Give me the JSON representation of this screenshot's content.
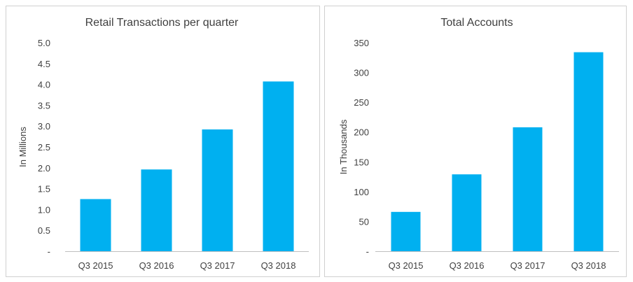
{
  "chart_data": [
    {
      "type": "bar",
      "title": "Retail Transactions per quarter",
      "ylabel": "In Millions",
      "xlabel": "",
      "categories": [
        "Q3 2015",
        "Q3 2016",
        "Q3 2017",
        "Q3 2018"
      ],
      "values": [
        1.25,
        1.96,
        2.92,
        4.07
      ],
      "ylim": [
        0,
        5.0
      ],
      "yticks": [
        "-",
        "0.5",
        "1.0",
        "1.5",
        "2.0",
        "2.5",
        "3.0",
        "3.5",
        "4.0",
        "4.5",
        "5.0"
      ],
      "bar_color": "#00b0f0",
      "grid": false,
      "legend": "none"
    },
    {
      "type": "bar",
      "title": "Total Accounts",
      "ylabel": "In Thousands",
      "xlabel": "",
      "categories": [
        "Q3 2015",
        "Q3 2016",
        "Q3 2017",
        "Q3 2018"
      ],
      "values": [
        66,
        129,
        208,
        334
      ],
      "ylim": [
        0,
        350
      ],
      "yticks": [
        "-",
        "50",
        "100",
        "150",
        "200",
        "250",
        "300",
        "350"
      ],
      "bar_color": "#00b0f0",
      "grid": false,
      "legend": "none"
    }
  ]
}
